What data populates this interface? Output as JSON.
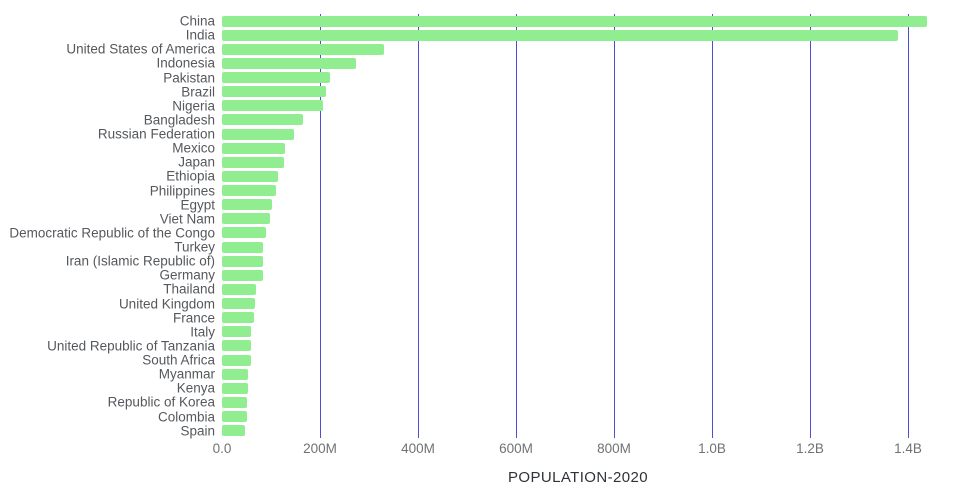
{
  "chart_data": {
    "type": "bar",
    "orientation": "horizontal",
    "title": "",
    "xlabel": "POPULATION-2020",
    "ylabel": "",
    "unit": "millions of people",
    "xlim": [
      0,
      1450
    ],
    "grid": true,
    "bar_color": "#90ee90",
    "grid_color": "#4e4ed2",
    "x_ticks": [
      {
        "value": 0,
        "label": "0.0"
      },
      {
        "value": 200,
        "label": "200M"
      },
      {
        "value": 400,
        "label": "400M"
      },
      {
        "value": 600,
        "label": "600M"
      },
      {
        "value": 800,
        "label": "800M"
      },
      {
        "value": 1000,
        "label": "1.0B"
      },
      {
        "value": 1200,
        "label": "1.2B"
      },
      {
        "value": 1400,
        "label": "1.4B"
      }
    ],
    "categories": [
      "China",
      "India",
      "United States of America",
      "Indonesia",
      "Pakistan",
      "Brazil",
      "Nigeria",
      "Bangladesh",
      "Russian Federation",
      "Mexico",
      "Japan",
      "Ethiopia",
      "Philippines",
      "Egypt",
      "Viet Nam",
      "Democratic Republic of the Congo",
      "Turkey",
      "Iran (Islamic Republic of)",
      "Germany",
      "Thailand",
      "United Kingdom",
      "France",
      "Italy",
      "United Republic of Tanzania",
      "South Africa",
      "Myanmar",
      "Kenya",
      "Republic of Korea",
      "Colombia",
      "Spain"
    ],
    "values": [
      1439,
      1380,
      331,
      273,
      221,
      212,
      206,
      165,
      146,
      129,
      126,
      115,
      110,
      102,
      97,
      90,
      84,
      84,
      84,
      70,
      68,
      65,
      60,
      60,
      59,
      54,
      54,
      51,
      51,
      47
    ]
  }
}
